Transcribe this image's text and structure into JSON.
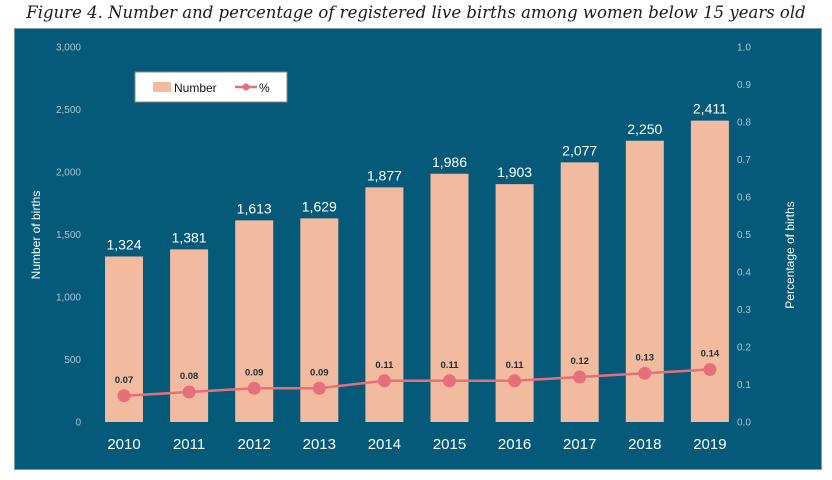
{
  "figure_title": "Figure 4. Number and percentage of registered live births among women below 15 years old",
  "colors": {
    "background": "#065a79",
    "bar": "#f2bba0",
    "line": "#e5707a",
    "marker": "#e5707a",
    "text": "#ffffff",
    "tick": "#a9c6d3"
  },
  "chart_data": {
    "type": "bar",
    "title": "",
    "categories": [
      "2010",
      "2011",
      "2012",
      "2013",
      "2014",
      "2015",
      "2016",
      "2017",
      "2018",
      "2019"
    ],
    "series": [
      {
        "name": "Number",
        "type": "bar",
        "axis": "left",
        "values": [
          1324,
          1381,
          1613,
          1629,
          1877,
          1986,
          1903,
          2077,
          2250,
          2411
        ],
        "labels": [
          "1,324",
          "1,381",
          "1,613",
          "1,629",
          "1,877",
          "1,986",
          "1,903",
          "2,077",
          "2,250",
          "2,411"
        ]
      },
      {
        "name": "%",
        "type": "line",
        "axis": "right",
        "values": [
          0.07,
          0.08,
          0.09,
          0.09,
          0.11,
          0.11,
          0.11,
          0.12,
          0.13,
          0.14
        ],
        "labels": [
          "0.07",
          "0.08",
          "0.09",
          "0.09",
          "0.11",
          "0.11",
          "0.11",
          "0.12",
          "0.13",
          "0.14"
        ]
      }
    ],
    "ylabel": "Number of births",
    "y2label": "Percentage of births",
    "ylim": [
      0,
      3000
    ],
    "y2lim": [
      0,
      1.0
    ],
    "yticks": [
      "0",
      "500",
      "1,000",
      "1,500",
      "2,000",
      "2,500",
      "3,000"
    ],
    "y2ticks": [
      "0.0",
      "0.1",
      "0.2",
      "0.3",
      "0.4",
      "0.5",
      "0.6",
      "0.7",
      "0.8",
      "0.9",
      "1.0"
    ],
    "grid": false,
    "legend": {
      "position": "top-left",
      "entries": [
        "Number",
        "%"
      ]
    }
  }
}
